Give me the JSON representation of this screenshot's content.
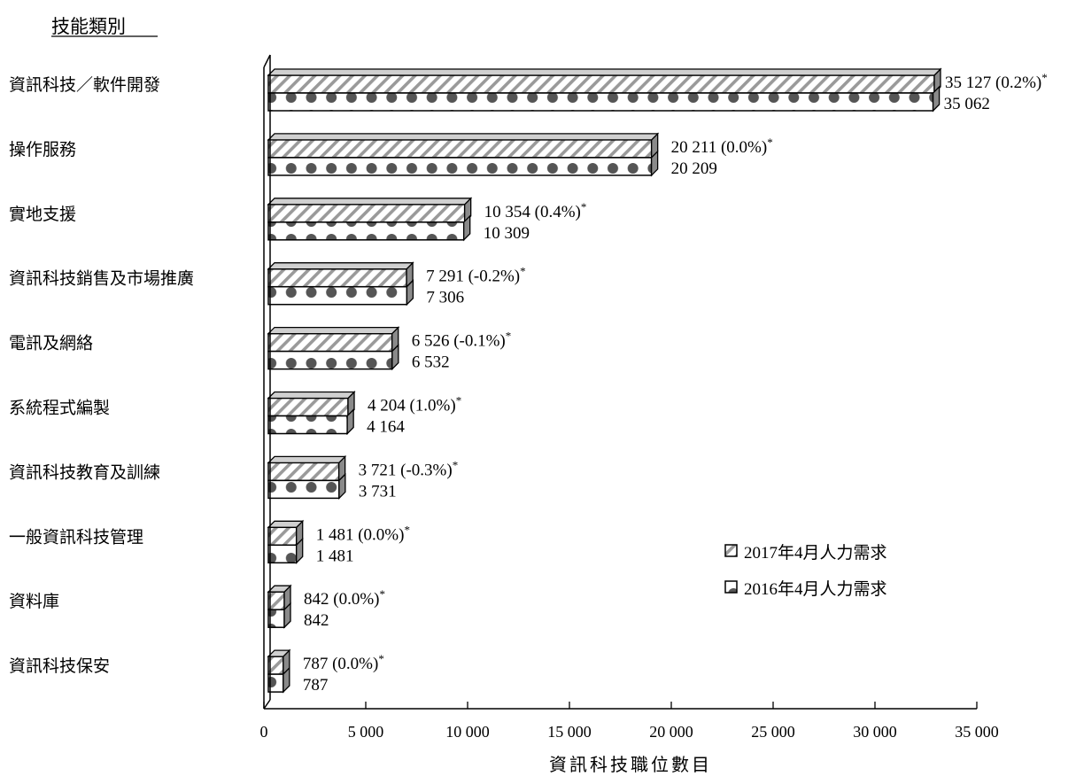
{
  "chart_data": {
    "type": "bar",
    "orientation": "horizontal",
    "y_axis_title": "技能類別",
    "xlabel": "資訊科技職位數目",
    "xlim": [
      0,
      35000
    ],
    "xticks": [
      "0",
      "5 000",
      "10 000",
      "15 000",
      "20 000",
      "25 000",
      "30 000",
      "35 000"
    ],
    "legend_position": "right",
    "grid": false,
    "categories": [
      "資訊科技／軟件開發",
      "操作服務",
      "實地支援",
      "資訊科技銷售及市場推廣",
      "電訊及網絡",
      "系統程式編製",
      "資訊科技教育及訓練",
      "一般資訊科技管理",
      "資料庫",
      "資訊科技保安"
    ],
    "series": [
      {
        "name": "2017年4月人力需求",
        "values": [
          35127,
          20211,
          10354,
          7291,
          6526,
          4204,
          3721,
          1481,
          842,
          787
        ],
        "labels": [
          "35 127 (0.2%)",
          "20 211 (0.0%)",
          "10 354 (0.4%)",
          "7 291 (-0.2%)",
          "6 526 (-0.1%)",
          "4 204 (1.0%)",
          "3 721 (-0.3%)",
          "1 481 (0.0%)",
          "842 (0.0%)",
          "787 (0.0%)"
        ],
        "label_suffix": "*",
        "pattern": "diagonal-hatch",
        "color": "#a0a0a0"
      },
      {
        "name": "2016年4月人力需求",
        "values": [
          35062,
          20209,
          10309,
          7306,
          6532,
          4164,
          3731,
          1481,
          842,
          787
        ],
        "labels": [
          "35 062",
          "20 209",
          "10 309",
          "7 306",
          "6 532",
          "4 164",
          "3 731",
          "1 481",
          "842",
          "787"
        ],
        "pattern": "dots",
        "color": "#555555"
      }
    ]
  }
}
